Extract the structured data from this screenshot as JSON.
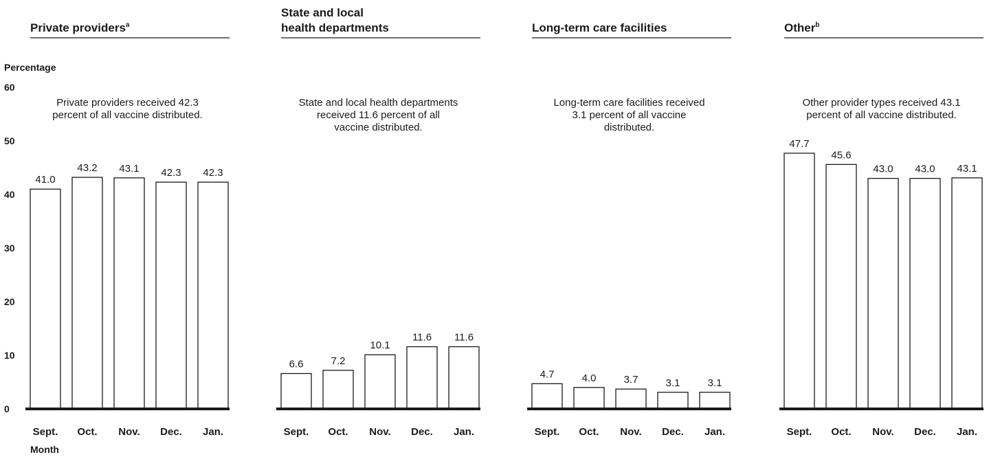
{
  "chart_data": {
    "type": "bar",
    "ylabel": "Percentage",
    "xlabel": "Month",
    "ylim": [
      0,
      60
    ],
    "yticks": [
      "0",
      "10",
      "20",
      "30",
      "40",
      "50",
      "60"
    ],
    "categories": [
      "Sept.",
      "Oct.",
      "Nov.",
      "Dec.",
      "Jan."
    ],
    "grid": false,
    "panels": [
      {
        "title_lines": [
          "Private providers"
        ],
        "superscript": "a",
        "note_lines": [
          "Private providers received 42.3",
          "percent of all vaccine distributed."
        ],
        "values": [
          41.0,
          43.2,
          43.1,
          42.3,
          42.3
        ],
        "labels": [
          "41.0",
          "43.2",
          "43.1",
          "42.3",
          "42.3"
        ]
      },
      {
        "title_lines": [
          "State and local",
          "health departments"
        ],
        "superscript": "",
        "note_lines": [
          "State and local health departments",
          "received 11.6 percent of all",
          "vaccine distributed."
        ],
        "values": [
          6.6,
          7.2,
          10.1,
          11.6,
          11.6
        ],
        "labels": [
          "6.6",
          "7.2",
          "10.1",
          "11.6",
          "11.6"
        ]
      },
      {
        "title_lines": [
          "Long-term care facilities"
        ],
        "superscript": "",
        "note_lines": [
          "Long-term care facilities received",
          "3.1 percent of all vaccine",
          "distributed."
        ],
        "values": [
          4.7,
          4.0,
          3.7,
          3.1,
          3.1
        ],
        "labels": [
          "4.7",
          "4.0",
          "3.7",
          "3.1",
          "3.1"
        ]
      },
      {
        "title_lines": [
          "Other"
        ],
        "superscript": "b",
        "note_lines": [
          "Other provider types received 43.1",
          "percent of all vaccine distributed."
        ],
        "values": [
          47.7,
          45.6,
          43.0,
          43.0,
          43.1
        ],
        "labels": [
          "47.7",
          "45.6",
          "43.0",
          "43.0",
          "43.1"
        ]
      }
    ]
  }
}
